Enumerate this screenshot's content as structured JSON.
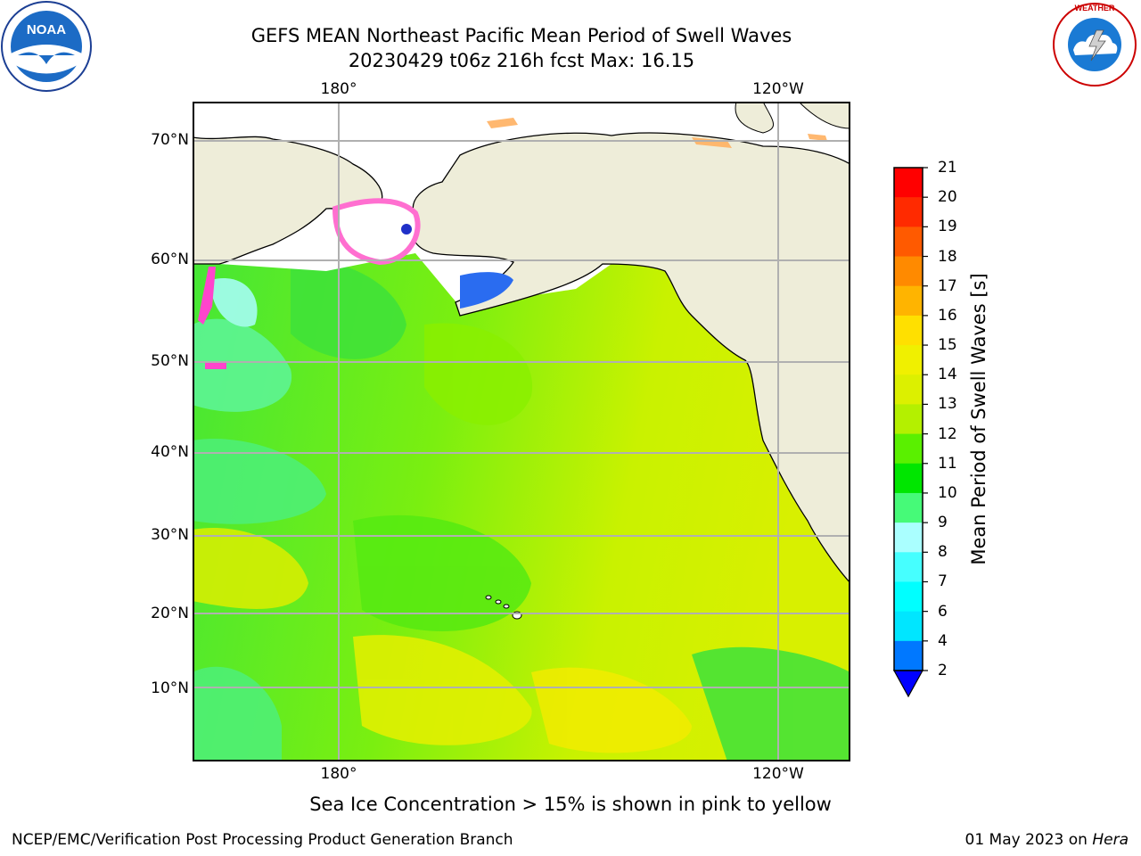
{
  "header": {
    "title_line1": "GEFS MEAN Northeast Pacific Mean Period of Swell Waves",
    "title_line2": "20230429 t06z 216h fcst   Max: 16.15"
  },
  "logos": {
    "left": "NOAA",
    "right": "NATIONAL WEATHER SERVICE"
  },
  "map": {
    "projection_labels": {
      "lon_top": [
        "180°",
        "120°W"
      ],
      "lon_bottom": [
        "180°",
        "120°W"
      ],
      "lat": [
        "70°N",
        "60°N",
        "50°N",
        "40°N",
        "30°N",
        "20°N",
        "10°N"
      ]
    },
    "land_color": "#eeedd9",
    "grid_color": "#b0b0b0"
  },
  "colorbar": {
    "label": "Mean Period of Swell Waves [s]",
    "ticks": [
      "21",
      "20",
      "19",
      "18",
      "17",
      "16",
      "15",
      "14",
      "13",
      "12",
      "11",
      "10",
      "9",
      "8",
      "7",
      "6",
      "4",
      "2"
    ],
    "bins": [
      {
        "max": 21,
        "color": "#ff0000"
      },
      {
        "max": 20,
        "color": "#ff2a00"
      },
      {
        "max": 19,
        "color": "#ff5a00"
      },
      {
        "max": 18,
        "color": "#ff8a00"
      },
      {
        "max": 17,
        "color": "#ffb400"
      },
      {
        "max": 16,
        "color": "#ffe000"
      },
      {
        "max": 15,
        "color": "#f0f000"
      },
      {
        "max": 14,
        "color": "#dcf000"
      },
      {
        "max": 13,
        "color": "#b4f000"
      },
      {
        "max": 12,
        "color": "#5af000"
      },
      {
        "max": 11,
        "color": "#00e600"
      },
      {
        "max": 10,
        "color": "#46fa78"
      },
      {
        "max": 9,
        "color": "#aaffff"
      },
      {
        "max": 8,
        "color": "#46ffff"
      },
      {
        "max": 7,
        "color": "#00ffff"
      },
      {
        "max": 6,
        "color": "#00e6ff"
      },
      {
        "max": 4,
        "color": "#0078ff"
      },
      {
        "max": 2,
        "color": "#0000ff"
      }
    ]
  },
  "note": "Sea Ice Concentration > 15% is shown in pink to yellow",
  "footer": {
    "left": "NCEP/EMC/Verification Post Processing Product Generation Branch",
    "right_prefix": "01 May 2023 on ",
    "right_host": "Hera"
  }
}
